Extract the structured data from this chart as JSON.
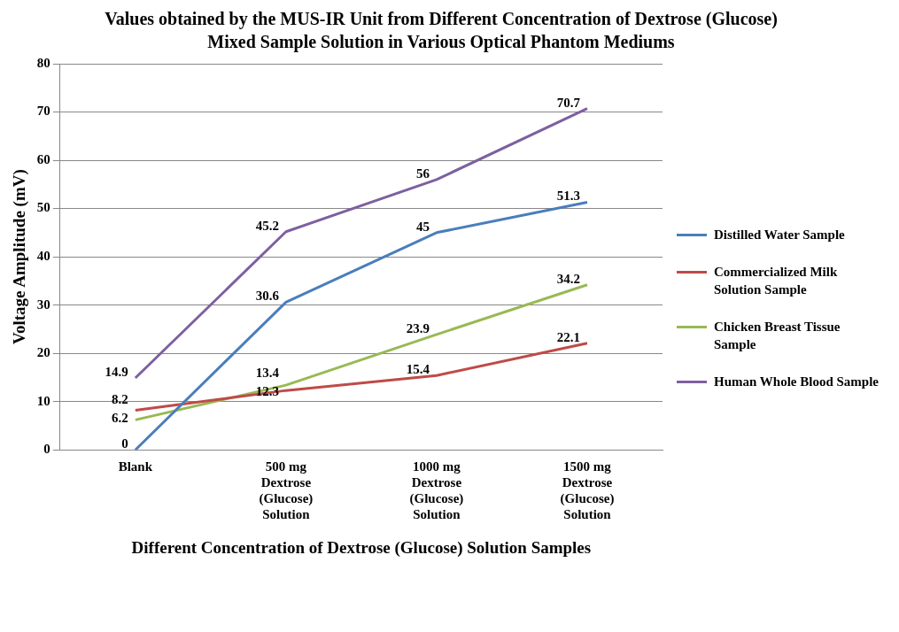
{
  "chart_data": {
    "type": "line",
    "title": "Values obtained by the MUS-IR Unit from Different Concentration of Dextrose (Glucose) Mixed Sample Solution in Various Optical Phantom Mediums",
    "xlabel": "Different Concentration of Dextrose (Glucose) Solution Samples",
    "ylabel": "Voltage Amplitude (mV)",
    "categories": [
      "Blank",
      "500 mg Dextrose (Glucose) Solution",
      "1000 mg Dextrose (Glucose) Solution",
      "1500 mg Dextrose (Glucose) Solution"
    ],
    "series": [
      {
        "name": "Distilled Water Sample",
        "color": "#4a7ebb",
        "values": [
          0,
          30.6,
          45,
          51.3
        ]
      },
      {
        "name": "Commercialized Milk Solution Sample",
        "color": "#be4b48",
        "values": [
          8.2,
          12.3,
          15.4,
          22.1
        ]
      },
      {
        "name": "Chicken Breast Tissue Sample",
        "color": "#98b954",
        "values": [
          6.2,
          13.4,
          23.9,
          34.2
        ]
      },
      {
        "name": "Human Whole Blood Sample",
        "color": "#7d60a0",
        "values": [
          14.9,
          45.2,
          56,
          70.7
        ]
      }
    ],
    "ylim": [
      0,
      80
    ],
    "yticks": [
      0,
      10,
      20,
      30,
      40,
      50,
      60,
      70,
      80
    ],
    "grid": "y",
    "legend": "right",
    "marker": "none",
    "line_style": "solid",
    "data_labels": true
  }
}
